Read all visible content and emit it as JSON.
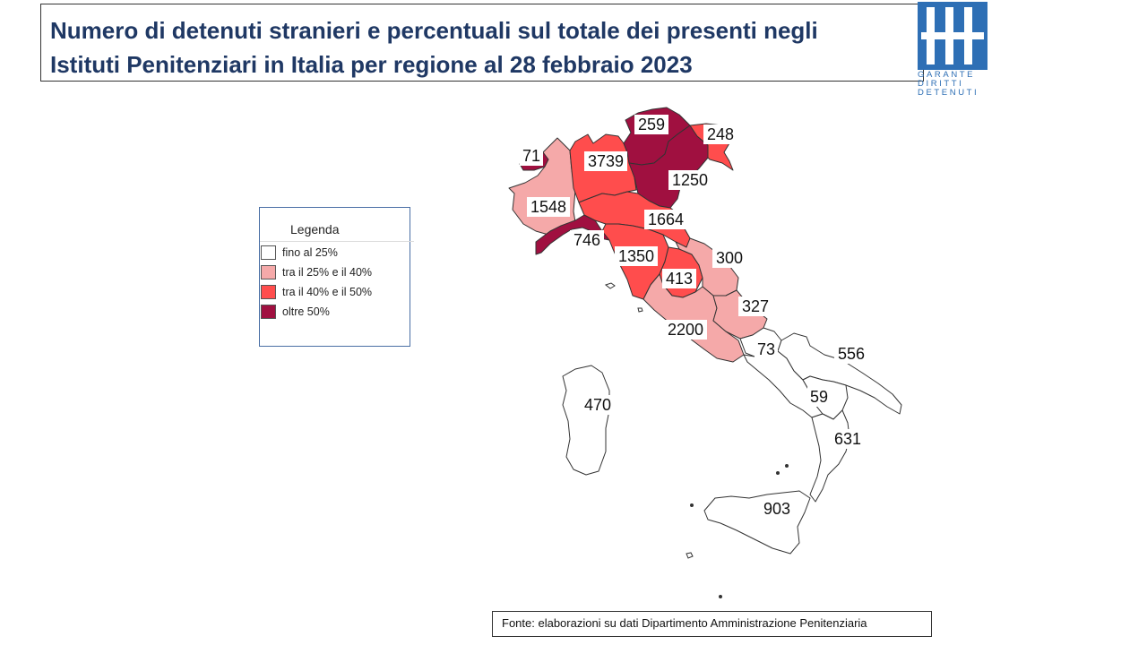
{
  "title": {
    "line1": "Numero di detenuti stranieri e percentuali sul totale dei presenti negli",
    "line2": "Istituti Penitenziari in Italia  per regione al 28 febbraio 2023"
  },
  "logo": {
    "icon": "garante-logo-icon",
    "color": "#2e6fb5",
    "lines": [
      "GARANTE",
      "DIRITTI",
      "DETENUTI"
    ]
  },
  "legend": {
    "title": "Legenda",
    "items": [
      {
        "label": "fino al 25%",
        "color": "#ffffff"
      },
      {
        "label": "tra il 25% e il 40%",
        "color": "#f5a9a9"
      },
      {
        "label": " tra il 40% e il 50%",
        "color": "#ff4d4d"
      },
      {
        "label": "oltre 50%",
        "color": "#a01040"
      }
    ]
  },
  "regions": [
    {
      "name": "Valle d'Aosta",
      "value": "71",
      "class": 3
    },
    {
      "name": "Piemonte",
      "value": "1548",
      "class": 1
    },
    {
      "name": "Liguria",
      "value": "746",
      "class": 3
    },
    {
      "name": "Lombardia",
      "value": "3739",
      "class": 2
    },
    {
      "name": "Trentino-Alto Adige",
      "value": "259",
      "class": 3
    },
    {
      "name": "Veneto",
      "value": "1250",
      "class": 3
    },
    {
      "name": "Friuli-Venezia Giulia",
      "value": "248",
      "class": 2
    },
    {
      "name": "Emilia-Romagna",
      "value": "1664",
      "class": 2
    },
    {
      "name": "Toscana",
      "value": "1350",
      "class": 2
    },
    {
      "name": "Umbria",
      "value": "413",
      "class": 2
    },
    {
      "name": "Marche",
      "value": "300",
      "class": 1
    },
    {
      "name": "Lazio",
      "value": "2200",
      "class": 1
    },
    {
      "name": "Abruzzo",
      "value": "327",
      "class": 1
    },
    {
      "name": "Molise",
      "value": "73",
      "class": 0
    },
    {
      "name": "Campania",
      "value": "59",
      "class": 0
    },
    {
      "name": "Puglia",
      "value": "556",
      "class": 0
    },
    {
      "name": "Basilicata",
      "value": "",
      "class": 0
    },
    {
      "name": "Calabria",
      "value": "631",
      "class": 0
    },
    {
      "name": "Sicilia",
      "value": "903",
      "class": 0
    },
    {
      "name": "Sardegna",
      "value": "470",
      "class": 0
    }
  ],
  "source": "Fonte: elaborazioni su dati Dipartimento Amministrazione Penitenziaria"
}
